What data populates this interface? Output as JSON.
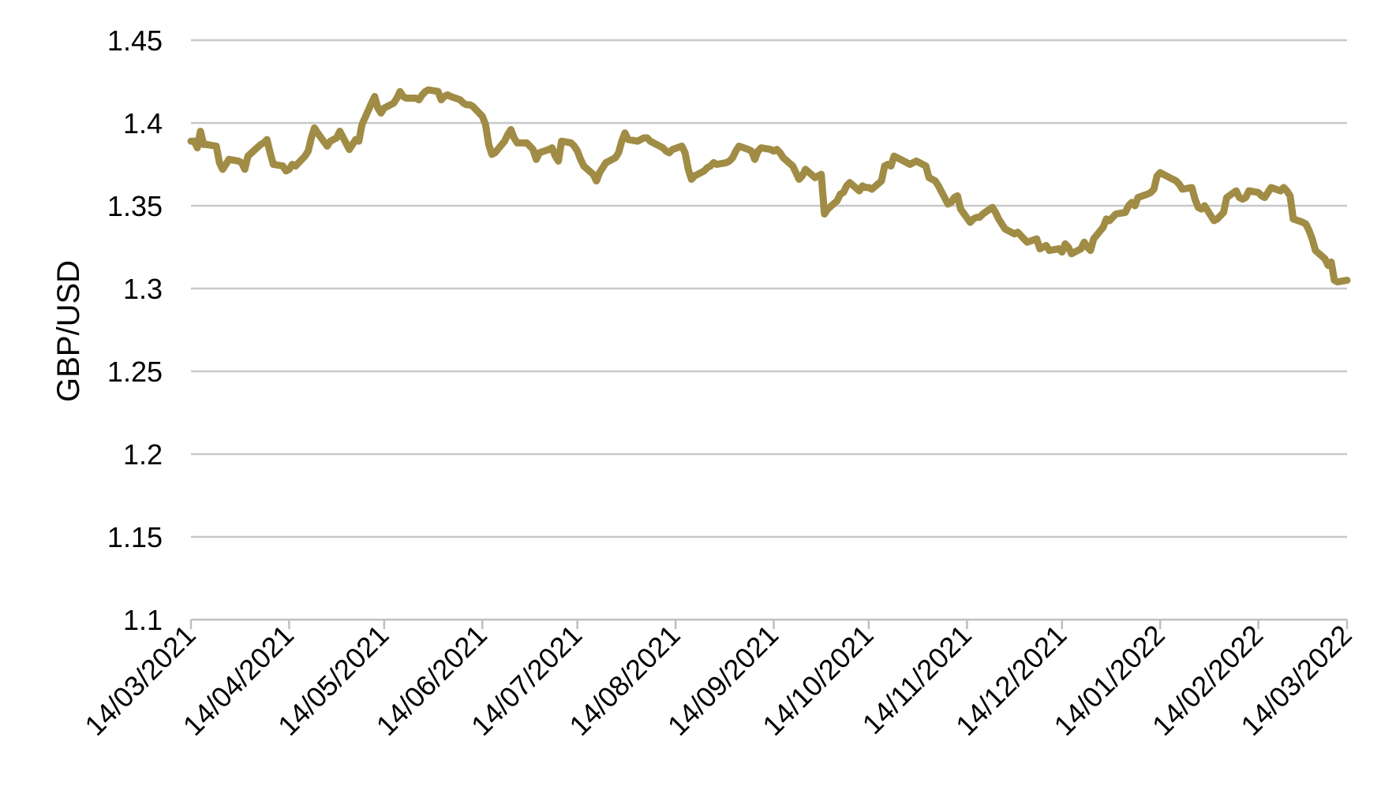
{
  "chart_data": {
    "type": "line",
    "title": "",
    "xlabel": "",
    "ylabel": "GBP/USD",
    "ylim": [
      1.1,
      1.45
    ],
    "yticks": [
      "1.1",
      "1.15",
      "1.2",
      "1.25",
      "1.3",
      "1.35",
      "1.4",
      "1.45"
    ],
    "xticks": [
      "14/03/2021",
      "14/04/2021",
      "14/05/2021",
      "14/06/2021",
      "14/07/2021",
      "14/08/2021",
      "14/09/2021",
      "14/10/2021",
      "14/11/2021",
      "14/12/2021",
      "14/01/2022",
      "14/02/2022",
      "14/03/2022"
    ],
    "grid": true,
    "legend": "none",
    "colors": {
      "line": "#a08c45",
      "grid": "#c8c8c8",
      "axis": "#bfbfbf"
    },
    "series": [
      {
        "x": [
          "2021-03-14",
          "2021-03-15",
          "2021-03-16",
          "2021-03-17",
          "2021-03-18",
          "2021-03-19",
          "2021-03-22",
          "2021-03-23",
          "2021-03-24",
          "2021-03-25",
          "2021-03-26",
          "2021-03-29",
          "2021-03-30",
          "2021-03-31",
          "2021-04-01",
          "2021-04-05",
          "2021-04-06",
          "2021-04-07",
          "2021-04-08",
          "2021-04-09",
          "2021-04-12",
          "2021-04-13",
          "2021-04-14",
          "2021-04-15",
          "2021-04-16",
          "2021-04-19",
          "2021-04-20",
          "2021-04-21",
          "2021-04-22",
          "2021-04-23",
          "2021-04-26",
          "2021-04-27",
          "2021-04-28",
          "2021-04-29",
          "2021-04-30",
          "2021-05-03",
          "2021-05-04",
          "2021-05-05",
          "2021-05-06",
          "2021-05-07",
          "2021-05-10",
          "2021-05-11",
          "2021-05-12",
          "2021-05-13",
          "2021-05-14",
          "2021-05-17",
          "2021-05-18",
          "2021-05-19",
          "2021-05-20",
          "2021-05-21",
          "2021-05-24",
          "2021-05-25",
          "2021-05-26",
          "2021-05-27",
          "2021-05-28",
          "2021-05-31",
          "2021-06-01",
          "2021-06-02",
          "2021-06-03",
          "2021-06-04",
          "2021-06-07",
          "2021-06-08",
          "2021-06-09",
          "2021-06-10",
          "2021-06-11",
          "2021-06-14",
          "2021-06-15",
          "2021-06-16",
          "2021-06-17",
          "2021-06-18",
          "2021-06-21",
          "2021-06-22",
          "2021-06-23",
          "2021-06-24",
          "2021-06-25",
          "2021-06-28",
          "2021-06-29",
          "2021-06-30",
          "2021-07-01",
          "2021-07-02",
          "2021-07-05",
          "2021-07-06",
          "2021-07-07",
          "2021-07-08",
          "2021-07-09",
          "2021-07-12",
          "2021-07-13",
          "2021-07-14",
          "2021-07-15",
          "2021-07-16",
          "2021-07-19",
          "2021-07-20",
          "2021-07-21",
          "2021-07-22",
          "2021-07-23",
          "2021-07-26",
          "2021-07-27",
          "2021-07-28",
          "2021-07-29",
          "2021-07-30",
          "2021-08-02",
          "2021-08-03",
          "2021-08-04",
          "2021-08-05",
          "2021-08-06",
          "2021-08-09",
          "2021-08-10",
          "2021-08-11",
          "2021-08-12",
          "2021-08-13",
          "2021-08-16",
          "2021-08-17",
          "2021-08-18",
          "2021-08-19",
          "2021-08-20",
          "2021-08-23",
          "2021-08-24",
          "2021-08-25",
          "2021-08-26",
          "2021-08-27",
          "2021-08-30",
          "2021-08-31",
          "2021-09-01",
          "2021-09-02",
          "2021-09-03",
          "2021-09-06",
          "2021-09-07",
          "2021-09-08",
          "2021-09-09",
          "2021-09-10",
          "2021-09-13",
          "2021-09-14",
          "2021-09-15",
          "2021-09-16",
          "2021-09-17",
          "2021-09-20",
          "2021-09-21",
          "2021-09-22",
          "2021-09-23",
          "2021-09-24",
          "2021-09-27",
          "2021-09-28",
          "2021-09-29",
          "2021-09-30",
          "2021-10-01",
          "2021-10-04",
          "2021-10-05",
          "2021-10-06",
          "2021-10-07",
          "2021-10-08",
          "2021-10-11",
          "2021-10-12",
          "2021-10-13",
          "2021-10-14",
          "2021-10-15",
          "2021-10-18",
          "2021-10-19",
          "2021-10-20",
          "2021-10-21",
          "2021-10-22",
          "2021-10-25",
          "2021-10-26",
          "2021-10-27",
          "2021-10-28",
          "2021-10-29",
          "2021-11-01",
          "2021-11-02",
          "2021-11-03",
          "2021-11-04",
          "2021-11-05",
          "2021-11-08",
          "2021-11-09",
          "2021-11-10",
          "2021-11-11",
          "2021-11-12",
          "2021-11-15",
          "2021-11-16",
          "2021-11-17",
          "2021-11-18",
          "2021-11-19",
          "2021-11-22",
          "2021-11-23",
          "2021-11-24",
          "2021-11-25",
          "2021-11-26",
          "2021-11-29",
          "2021-11-30",
          "2021-12-01",
          "2021-12-02",
          "2021-12-03",
          "2021-12-06",
          "2021-12-07",
          "2021-12-08",
          "2021-12-09",
          "2021-12-10",
          "2021-12-13",
          "2021-12-14",
          "2021-12-15",
          "2021-12-16",
          "2021-12-17",
          "2021-12-20",
          "2021-12-21",
          "2021-12-22",
          "2021-12-23",
          "2021-12-24",
          "2021-12-27",
          "2021-12-28",
          "2021-12-29",
          "2021-12-30",
          "2021-12-31",
          "2022-01-03",
          "2022-01-04",
          "2022-01-05",
          "2022-01-06",
          "2022-01-07",
          "2022-01-10",
          "2022-01-11",
          "2022-01-12",
          "2022-01-13",
          "2022-01-14",
          "2022-01-17",
          "2022-01-18",
          "2022-01-19",
          "2022-01-20",
          "2022-01-21",
          "2022-01-24",
          "2022-01-25",
          "2022-01-26",
          "2022-01-27",
          "2022-01-28",
          "2022-01-31",
          "2022-02-01",
          "2022-02-02",
          "2022-02-03",
          "2022-02-04",
          "2022-02-07",
          "2022-02-08",
          "2022-02-09",
          "2022-02-10",
          "2022-02-11",
          "2022-02-14",
          "2022-02-15",
          "2022-02-16",
          "2022-02-17",
          "2022-02-18",
          "2022-02-21",
          "2022-02-22",
          "2022-02-23",
          "2022-02-24",
          "2022-02-25",
          "2022-02-28",
          "2022-03-01",
          "2022-03-02",
          "2022-03-03",
          "2022-03-04",
          "2022-03-07",
          "2022-03-08",
          "2022-03-09",
          "2022-03-10",
          "2022-03-11",
          "2022-03-14"
        ],
        "values": [
          1.389,
          1.389,
          1.385,
          1.395,
          1.387,
          1.387,
          1.386,
          1.376,
          1.372,
          1.375,
          1.378,
          1.377,
          1.376,
          1.372,
          1.38,
          1.387,
          1.388,
          1.39,
          1.382,
          1.375,
          1.374,
          1.371,
          1.372,
          1.375,
          1.374,
          1.38,
          1.383,
          1.391,
          1.397,
          1.394,
          1.386,
          1.389,
          1.39,
          1.391,
          1.395,
          1.384,
          1.387,
          1.39,
          1.389,
          1.399,
          1.412,
          1.416,
          1.409,
          1.406,
          1.409,
          1.412,
          1.415,
          1.419,
          1.416,
          1.415,
          1.415,
          1.414,
          1.417,
          1.419,
          1.42,
          1.419,
          1.414,
          1.416,
          1.417,
          1.416,
          1.414,
          1.412,
          1.411,
          1.411,
          1.41,
          1.404,
          1.399,
          1.387,
          1.381,
          1.382,
          1.389,
          1.393,
          1.396,
          1.391,
          1.388,
          1.388,
          1.386,
          1.384,
          1.378,
          1.382,
          1.384,
          1.385,
          1.38,
          1.377,
          1.389,
          1.388,
          1.386,
          1.383,
          1.378,
          1.374,
          1.369,
          1.365,
          1.37,
          1.373,
          1.376,
          1.379,
          1.382,
          1.389,
          1.394,
          1.39,
          1.389,
          1.39,
          1.391,
          1.391,
          1.389,
          1.386,
          1.385,
          1.383,
          1.382,
          1.384,
          1.386,
          1.382,
          1.372,
          1.366,
          1.368,
          1.371,
          1.373,
          1.374,
          1.376,
          1.375,
          1.376,
          1.377,
          1.379,
          1.383,
          1.386,
          1.384,
          1.383,
          1.378,
          1.383,
          1.385,
          1.384,
          1.383,
          1.384,
          1.382,
          1.379,
          1.374,
          1.37,
          1.366,
          1.368,
          1.372,
          1.367,
          1.368,
          1.369,
          1.345,
          1.348,
          1.353,
          1.357,
          1.358,
          1.362,
          1.364,
          1.359,
          1.362,
          1.361,
          1.361,
          1.36,
          1.365,
          1.374,
          1.375,
          1.374,
          1.38,
          1.377,
          1.376,
          1.375,
          1.376,
          1.377,
          1.374,
          1.367,
          1.366,
          1.365,
          1.362,
          1.351,
          1.352,
          1.355,
          1.356,
          1.348,
          1.34,
          1.342,
          1.343,
          1.343,
          1.345,
          1.349,
          1.346,
          1.342,
          1.339,
          1.336,
          1.333,
          1.334,
          1.332,
          1.33,
          1.328,
          1.33,
          1.324,
          1.325,
          1.326,
          1.323,
          1.324,
          1.322,
          1.327,
          1.325,
          1.321,
          1.324,
          1.328,
          1.325,
          1.323,
          1.33,
          1.337,
          1.342,
          1.341,
          1.343,
          1.345,
          1.346,
          1.35,
          1.352,
          1.35,
          1.355,
          1.357,
          1.358,
          1.36,
          1.368,
          1.37,
          1.367,
          1.366,
          1.365,
          1.363,
          1.36,
          1.361,
          1.354,
          1.349,
          1.348,
          1.35,
          1.341,
          1.342,
          1.344,
          1.346,
          1.355,
          1.359,
          1.355,
          1.354,
          1.355,
          1.359,
          1.358,
          1.356,
          1.355,
          1.358,
          1.361,
          1.359,
          1.361,
          1.359,
          1.356,
          1.342,
          1.34,
          1.339,
          1.335,
          1.33,
          1.323,
          1.318,
          1.314,
          1.316,
          1.305,
          1.304,
          1.305
        ]
      }
    ]
  }
}
